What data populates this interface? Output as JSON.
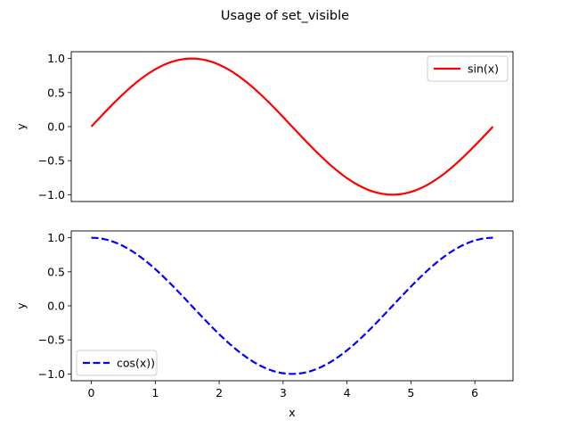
{
  "chart_data": {
    "suptitle": "Usage of set_visible",
    "xlabel": "x",
    "xlim": [
      -0.314,
      6.597
    ],
    "x_ticks": [
      0,
      1,
      2,
      3,
      4,
      5,
      6
    ],
    "subplots": [
      {
        "type": "line",
        "ylabel": "y",
        "ylim": [
          -1.1,
          1.1
        ],
        "y_ticks": [
          -1.0,
          -0.5,
          0.0,
          0.5,
          1.0
        ],
        "x_axis_visible": false,
        "legend_placement": "upper right",
        "series": [
          {
            "name": "sin(x)",
            "function": "sin",
            "color": "#ff0000",
            "line_style": "solid",
            "x_range": [
              0,
              6.283
            ],
            "points": 100
          }
        ]
      },
      {
        "type": "line",
        "ylabel": "y",
        "ylim": [
          -1.1,
          1.1
        ],
        "y_ticks": [
          -1.0,
          -0.5,
          0.0,
          0.5,
          1.0
        ],
        "x_axis_visible": true,
        "legend_placement": "lower left",
        "series": [
          {
            "name": "cos(x))",
            "function": "cos",
            "color": "#0000ff",
            "line_style": "dashed",
            "x_range": [
              0,
              6.283
            ],
            "points": 100
          }
        ]
      }
    ]
  }
}
